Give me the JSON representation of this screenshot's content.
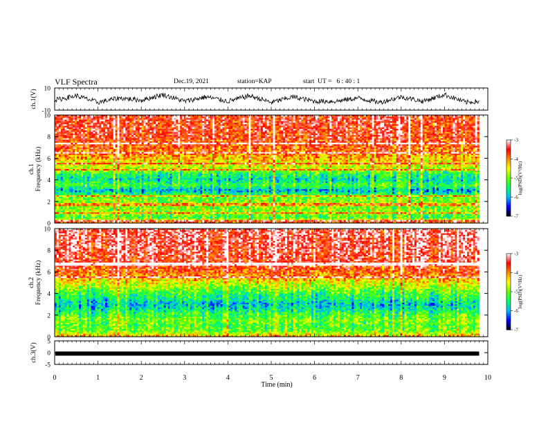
{
  "header": {
    "title": "VLF Spectra",
    "date": "Dec.19, 2021",
    "station": "station=KAP",
    "start": "start  UT =   6 : 40 : 1"
  },
  "colors": {
    "cmap": [
      "#000000",
      "#0000ff",
      "#00b8ff",
      "#00ff66",
      "#66ff00",
      "#ffff00",
      "#ff8800",
      "#ff0000",
      "#ffffff"
    ]
  },
  "chart_data": [
    {
      "type": "line",
      "panel": "ch1-waveform",
      "ylabel": "ch.1(V)",
      "ylim": [
        -10,
        10
      ],
      "yticks": [
        "10",
        "-10"
      ],
      "xlim": [
        0,
        10
      ],
      "x_approx_min": [
        0.0,
        0.5,
        1.0,
        1.5,
        2.0,
        2.5,
        3.0,
        3.5,
        4.0,
        4.5,
        5.0,
        5.5,
        6.0,
        6.5,
        7.0,
        7.5,
        8.0,
        8.5,
        9.0,
        9.5,
        9.8
      ],
      "values_approx": [
        -1,
        3,
        -3,
        1,
        -1,
        4,
        -2,
        2,
        -2,
        3,
        -3,
        2,
        -2,
        -2,
        1,
        -3,
        2,
        -2,
        4,
        -3,
        -2
      ]
    },
    {
      "type": "heatmap",
      "panel": "ch1-spectrogram",
      "ylabel": "ch.1\nFrequency (kHz)",
      "ylim": [
        0,
        10
      ],
      "yticks": [
        "0",
        "2",
        "4",
        "6",
        "8",
        "10"
      ],
      "xlim": [
        0,
        10
      ],
      "colorbar": {
        "label": "log(PSD)(V²/Hz)",
        "range": [
          -7,
          -3
        ],
        "ticks": [
          "-3",
          "-4",
          "-5",
          "-6",
          "-7"
        ]
      },
      "band_profile_approx": {
        "freq_khz": [
          0,
          0.5,
          1.0,
          1.5,
          2.0,
          2.5,
          3.0,
          3.5,
          4.0,
          4.5,
          5.0,
          5.5,
          6.0,
          7.0,
          8.0,
          10.0
        ],
        "log_psd": [
          -3.6,
          -5.2,
          -4.9,
          -5.0,
          -4.9,
          -5.1,
          -6.0,
          -5.2,
          -5.7,
          -5.4,
          -4.8,
          -4.5,
          -4.2,
          -3.8,
          -3.6,
          -3.5
        ]
      }
    },
    {
      "type": "heatmap",
      "panel": "ch2-spectrogram",
      "ylabel": "ch.2\nFrequency (kHz)",
      "ylim": [
        0,
        10
      ],
      "yticks": [
        "0",
        "2",
        "4",
        "6",
        "8",
        "10"
      ],
      "xlim": [
        0,
        10
      ],
      "colorbar": {
        "label": "log(PSD)(V²/Hz)",
        "range": [
          -7,
          -3
        ],
        "ticks": [
          "-3",
          "-4",
          "-5",
          "-6",
          "-7"
        ]
      },
      "band_profile_approx": {
        "freq_khz": [
          0,
          0.5,
          1.0,
          1.5,
          2.0,
          2.5,
          3.0,
          3.5,
          4.0,
          4.5,
          5.0,
          5.5,
          6.0,
          7.0,
          8.0,
          10.0
        ],
        "log_psd": [
          -4.2,
          -5.0,
          -5.2,
          -5.0,
          -5.2,
          -5.6,
          -5.9,
          -5.5,
          -5.3,
          -4.9,
          -4.6,
          -4.1,
          -3.8,
          -3.5,
          -3.4,
          -3.3
        ]
      }
    },
    {
      "type": "line",
      "panel": "ch3-waveform",
      "ylabel": "ch.3(V)",
      "ylim": [
        -5,
        5
      ],
      "yticks": [
        "5",
        "0",
        "-5"
      ],
      "xlim": [
        0,
        10
      ],
      "xlabel": "Time (min)",
      "xticks": [
        "0",
        "1",
        "2",
        "3",
        "4",
        "5",
        "6",
        "7",
        "8",
        "9",
        "10"
      ],
      "x_approx_min": [
        0,
        9.8
      ],
      "values_approx": [
        -0.4,
        -0.4
      ]
    }
  ]
}
